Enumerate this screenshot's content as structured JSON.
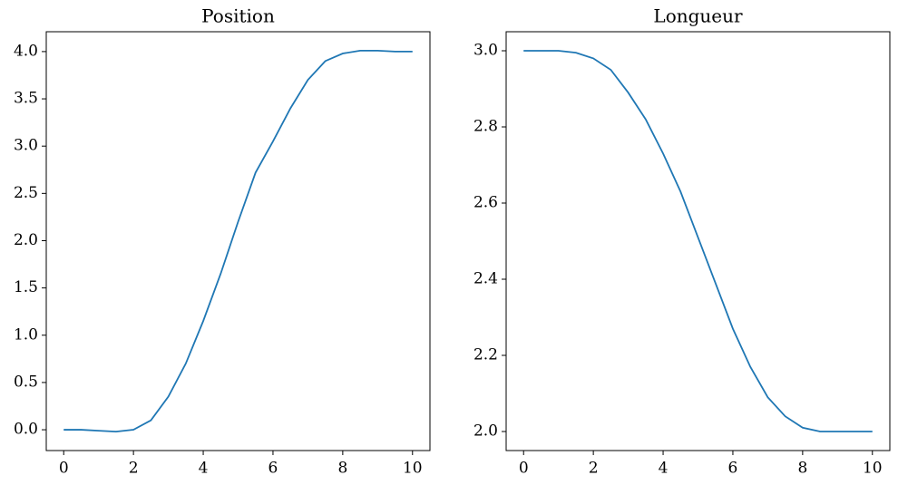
{
  "chart_data": [
    {
      "type": "line",
      "title": "Position",
      "x": [
        0,
        0.5,
        1,
        1.5,
        2,
        2.5,
        3,
        3.5,
        4,
        4.5,
        5,
        5.5,
        6,
        6.5,
        7,
        7.5,
        8,
        8.5,
        9,
        9.5,
        10
      ],
      "series": [
        {
          "color": "#1f77b4",
          "values": [
            0,
            0,
            -0.01,
            -0.02,
            0.0,
            0.1,
            0.35,
            0.7,
            1.15,
            1.65,
            2.2,
            2.72,
            3.05,
            3.4,
            3.7,
            3.9,
            3.98,
            4.01,
            4.01,
            4.0,
            4.0
          ]
        }
      ],
      "xlim": [
        -0.5,
        10.5
      ],
      "xticks": [
        0,
        2,
        4,
        6,
        8,
        10
      ],
      "ylim": [
        -0.22,
        4.21
      ],
      "yticks": [
        {
          "value": 0,
          "label": "0.0"
        },
        0.5,
        {
          "value": 1,
          "label": "1.0"
        },
        1.5,
        {
          "value": 2,
          "label": "2.0"
        },
        2.5,
        {
          "value": 3,
          "label": "3.0"
        },
        3.5,
        {
          "value": 4,
          "label": "4.0"
        }
      ]
    },
    {
      "type": "line",
      "title": "Longueur",
      "x": [
        0,
        0.5,
        1,
        1.5,
        2,
        2.5,
        3,
        3.5,
        4,
        4.5,
        5,
        5.5,
        6,
        6.5,
        7,
        7.5,
        8,
        8.5,
        9,
        9.5,
        10
      ],
      "series": [
        {
          "color": "#1f77b4",
          "values": [
            3.0,
            3.0,
            3.0,
            2.995,
            2.98,
            2.95,
            2.89,
            2.82,
            2.73,
            2.63,
            2.51,
            2.39,
            2.27,
            2.17,
            2.09,
            2.04,
            2.01,
            2.0,
            2.0,
            2.0,
            2.0
          ]
        }
      ],
      "xlim": [
        -0.5,
        10.5
      ],
      "xticks": [
        0,
        2,
        4,
        6,
        8,
        10
      ],
      "ylim": [
        1.95,
        3.05
      ],
      "yticks": [
        {
          "value": 2,
          "label": "2.0"
        },
        2.2,
        2.4,
        2.6,
        2.8,
        {
          "value": 3,
          "label": "3.0"
        }
      ]
    }
  ]
}
